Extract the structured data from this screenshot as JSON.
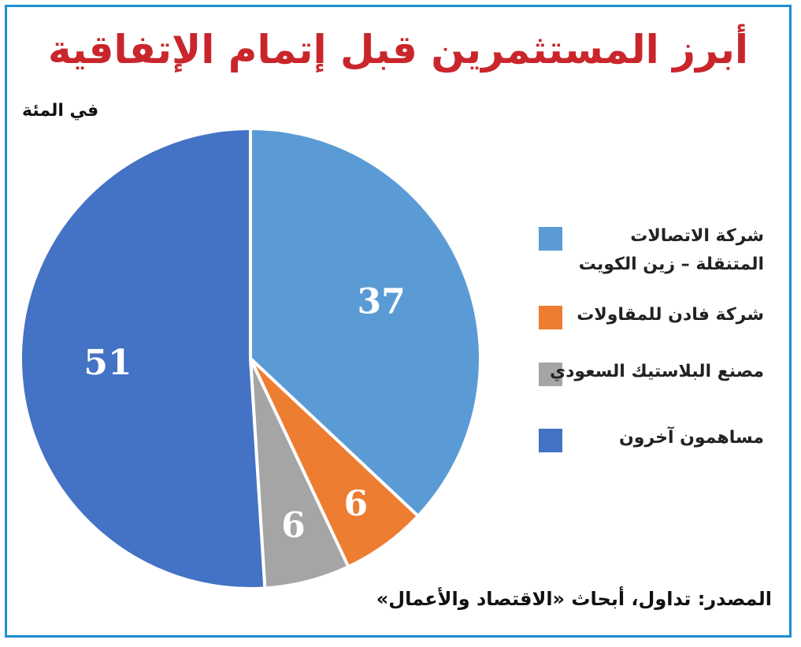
{
  "title": "أبرز المستثمرين قبل إتمام الإتفاقية",
  "unit_label": "في المئة",
  "source": "المصدر: تداول، أبحاث «الاقتصاد والأعمال»",
  "chart_data": {
    "type": "pie",
    "title": "أبرز المستثمرين قبل إتمام الإتفاقية",
    "unit": "في المئة",
    "start_angle_deg": 0,
    "direction": "clockwise",
    "legend_position": "right",
    "slices": [
      {
        "name": "شركة الاتصالات المتنقلة – زين الكويت",
        "value": 37,
        "label": "37",
        "color": "#5b9bd5"
      },
      {
        "name": "شركة فادن للمقاولات",
        "value": 6,
        "label": "6",
        "color": "#ed7d31"
      },
      {
        "name": "مصنع البلاستيك السعودي",
        "value": 6,
        "label": "6",
        "color": "#a5a5a5"
      },
      {
        "name": "مساهمون آخرون",
        "value": 51,
        "label": "51",
        "color": "#4472c4"
      }
    ]
  },
  "legend": {
    "items": [
      {
        "line1": "شركة الاتصالات",
        "line2": "المتنقلة – زين الكويت",
        "color": "#5b9bd5"
      },
      {
        "line1": "شركة فادن للمقاولات",
        "line2": "",
        "color": "#ed7d31"
      },
      {
        "line1": "مصنع البلاستيك السعودي",
        "line2": "",
        "color": "#a5a5a5"
      },
      {
        "line1": "مساهمون آخرون",
        "line2": "",
        "color": "#4472c4"
      }
    ]
  }
}
